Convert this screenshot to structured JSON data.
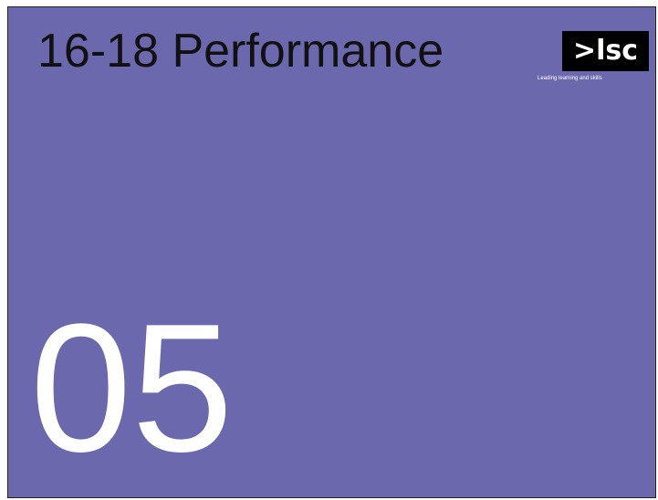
{
  "header": {
    "title": "16-18 Performance",
    "logo": ">lsc",
    "tagline": "Leading learning and skills"
  },
  "section_number": "05"
}
